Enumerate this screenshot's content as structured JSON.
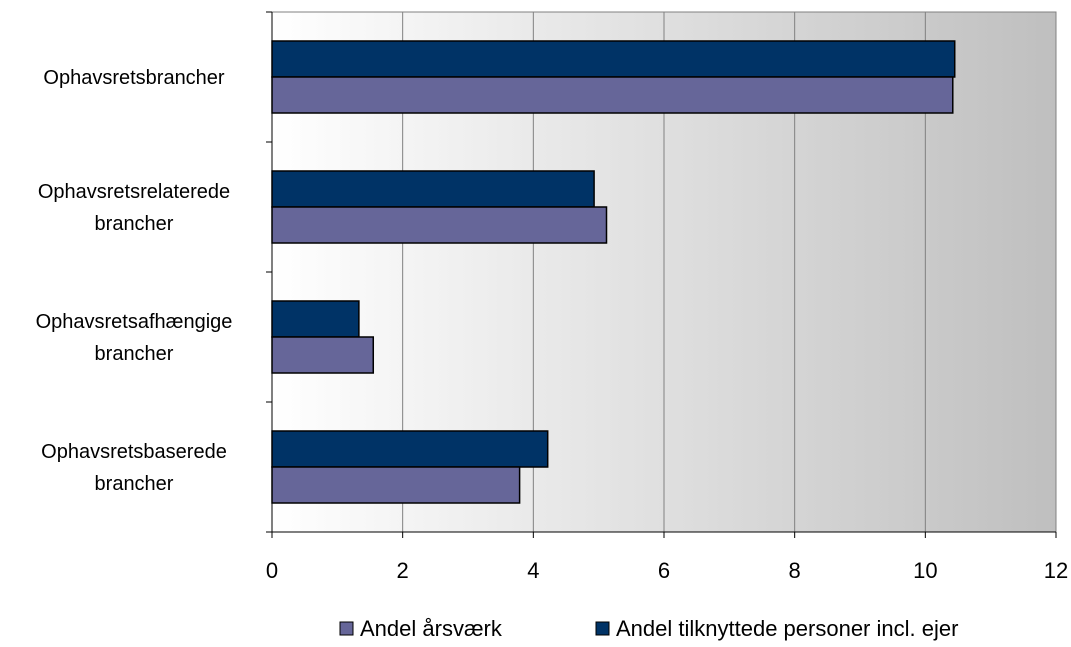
{
  "chart_data": {
    "type": "bar",
    "orientation": "horizontal",
    "categories": [
      "Ophavsretsbrancher",
      "Ophavsretsrelaterede brancher",
      "Ophavsretsafhængige brancher",
      "Ophavsretsbaserede brancher"
    ],
    "category_lines": [
      [
        "Ophavsretsbrancher"
      ],
      [
        "Ophavsretsrelaterede",
        "brancher"
      ],
      [
        "Ophavsretsafhængige",
        "brancher"
      ],
      [
        "Ophavsretsbaserede",
        "brancher"
      ]
    ],
    "series": [
      {
        "name": "Andel tilknyttede personer incl. ejer",
        "color": "#003366",
        "values": [
          10.45,
          4.93,
          1.33,
          4.22
        ]
      },
      {
        "name": "Andel årsværk",
        "color": "#666699",
        "values": [
          10.42,
          5.12,
          1.55,
          3.79
        ]
      }
    ],
    "xlim": [
      0,
      12
    ],
    "xticks": [
      0,
      2,
      4,
      6,
      8,
      10,
      12
    ],
    "grid": "vertical",
    "background": "gradient white to gray",
    "legend_position": "bottom",
    "legend_order": [
      "Andel årsværk",
      "Andel tilknyttede personer incl. ejer"
    ]
  }
}
